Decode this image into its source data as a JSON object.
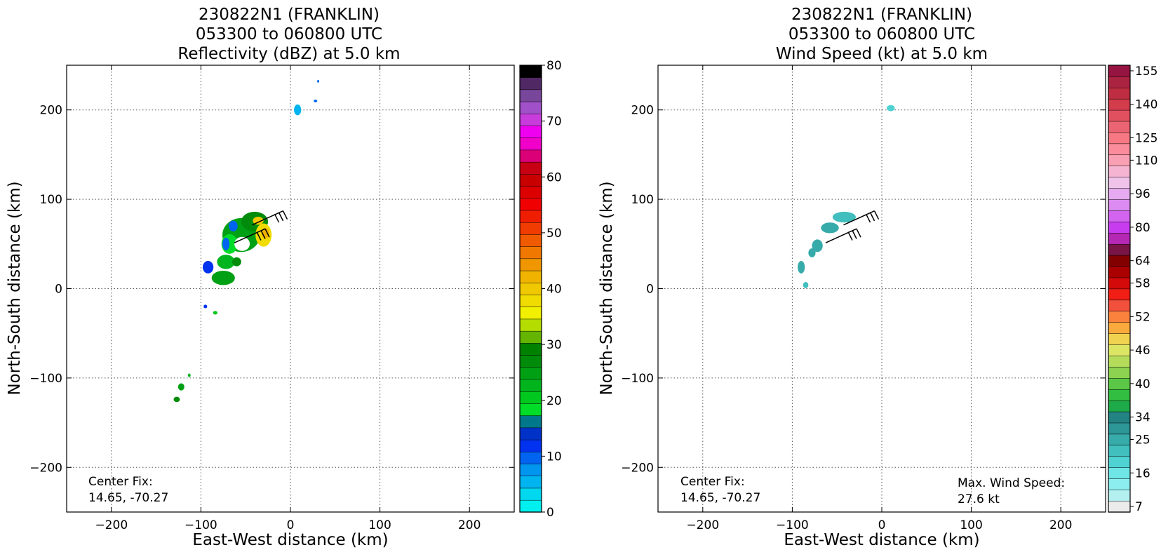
{
  "chart_data": [
    {
      "type": "heatmap",
      "panel": "reflectivity",
      "title": [
        "230822N1 (FRANKLIN)",
        "053300 to 060800 UTC",
        "Reflectivity (dBZ) at 5.0 km"
      ],
      "xlabel": "East-West distance (km)",
      "ylabel": "North-South distance (km)",
      "xlim": [
        -250,
        250
      ],
      "ylim": [
        -250,
        250
      ],
      "xticks": [
        -200,
        -100,
        0,
        100,
        200
      ],
      "yticks": [
        -200,
        -100,
        0,
        100,
        200
      ],
      "grid": true,
      "annotation": [
        "Center Fix:",
        "14.65, -70.27"
      ],
      "colorbar": {
        "min": 0,
        "max": 80,
        "tick_labels": [
          "0",
          "10",
          "20",
          "30",
          "40",
          "50",
          "60",
          "70",
          "80"
        ],
        "tick_values": [
          0,
          10,
          20,
          30,
          40,
          50,
          60,
          70,
          80
        ],
        "colors": [
          "#00f0f0",
          "#00d8f0",
          "#00b4f0",
          "#0096f0",
          "#0064f0",
          "#0032f0",
          "#0032c8",
          "#00788c",
          "#00dc28",
          "#00c81e",
          "#00b41e",
          "#00a014",
          "#008c0a",
          "#008200",
          "#64b400",
          "#b4dc00",
          "#f0f000",
          "#f0dc00",
          "#f0c800",
          "#f0b400",
          "#f09600",
          "#f07800",
          "#f05a00",
          "#f03c00",
          "#f01e00",
          "#f00000",
          "#dc0000",
          "#c80000",
          "#c80014",
          "#dc0078",
          "#f000c8",
          "#f000f0",
          "#c83cdc",
          "#a050c8",
          "#78469b",
          "#502864",
          "#000000"
        ]
      },
      "echo_cells": [
        {
          "x": -55,
          "y": 60,
          "w": 42,
          "h": 38,
          "dbz": 24
        },
        {
          "x": -40,
          "y": 75,
          "w": 30,
          "h": 22,
          "dbz": 27
        },
        {
          "x": -30,
          "y": 60,
          "w": 18,
          "h": 26,
          "dbz": 38
        },
        {
          "x": -28,
          "y": 62,
          "w": 9,
          "h": 12,
          "dbz": 42
        },
        {
          "x": -36,
          "y": 76,
          "w": 12,
          "h": 9,
          "dbz": 40
        },
        {
          "x": -68,
          "y": 50,
          "w": 18,
          "h": 22,
          "dbz": 19
        },
        {
          "x": -72,
          "y": 30,
          "w": 20,
          "h": 16,
          "dbz": 22
        },
        {
          "x": -75,
          "y": 12,
          "w": 26,
          "h": 16,
          "dbz": 24
        },
        {
          "x": -60,
          "y": 30,
          "w": 10,
          "h": 10,
          "dbz": 26
        },
        {
          "x": -64,
          "y": 70,
          "w": 10,
          "h": 12,
          "dbz": 10
        },
        {
          "x": -72,
          "y": 50,
          "w": 8,
          "h": 14,
          "dbz": 10
        },
        {
          "x": -92,
          "y": 24,
          "w": 12,
          "h": 14,
          "dbz": 12
        },
        {
          "x": -95,
          "y": -20,
          "w": 4,
          "h": 4,
          "dbz": 11
        },
        {
          "x": -84,
          "y": -27,
          "w": 5,
          "h": 4,
          "dbz": 20
        },
        {
          "x": -122,
          "y": -110,
          "w": 7,
          "h": 8,
          "dbz": 24
        },
        {
          "x": -113,
          "y": -97,
          "w": 3,
          "h": 4,
          "dbz": 22
        },
        {
          "x": -127,
          "y": -124,
          "w": 7,
          "h": 6,
          "dbz": 28
        },
        {
          "x": 8,
          "y": 200,
          "w": 8,
          "h": 12,
          "dbz": 6
        },
        {
          "x": 28,
          "y": 210,
          "w": 4,
          "h": 3,
          "dbz": 9
        },
        {
          "x": 31,
          "y": 232,
          "w": 2,
          "h": 3,
          "dbz": 9
        }
      ],
      "wind_barbs": [
        {
          "x": -38,
          "y": 76,
          "speed_kt": 27
        },
        {
          "x": -58,
          "y": 56,
          "speed_kt": 25
        }
      ]
    },
    {
      "type": "heatmap",
      "panel": "wind_speed",
      "title": [
        "230822N1 (FRANKLIN)",
        "053300 to 060800 UTC",
        "Wind Speed (kt) at 5.0 km"
      ],
      "xlabel": "East-West distance (km)",
      "ylabel": "North-South distance (km)",
      "xlim": [
        -250,
        250
      ],
      "ylim": [
        -250,
        250
      ],
      "xticks": [
        -200,
        -100,
        0,
        100,
        200
      ],
      "yticks": [
        -200,
        -100,
        0,
        100,
        200
      ],
      "grid": true,
      "annotation": [
        "Center Fix:",
        "14.65, -70.27"
      ],
      "max_wind_annotation": [
        "Max. Wind Speed:",
        "27.6 kt"
      ],
      "max_wind_speed_kt": 27.6,
      "colorbar": {
        "min": 7,
        "max": 160,
        "tick_labels": [
          "7",
          "16",
          "25",
          "34",
          "40",
          "46",
          "52",
          "58",
          "64",
          "80",
          "96",
          "110",
          "125",
          "140",
          "155"
        ],
        "colors": [
          "#ebebeb",
          "#b4f0f0",
          "#8ceeee",
          "#6ee6e6",
          "#50d2d2",
          "#41bebe",
          "#37aaaa",
          "#2d9696",
          "#238282",
          "#1eaa46",
          "#32be41",
          "#5ac846",
          "#8cd250",
          "#b4dc5a",
          "#dce664",
          "#f0d250",
          "#faaa3c",
          "#fa823c",
          "#f0503c",
          "#f01e14",
          "#d20a0a",
          "#aa0000",
          "#820000",
          "#781446",
          "#b428b4",
          "#c83cf0",
          "#d264f0",
          "#dc8cf0",
          "#e6aaf0",
          "#f0c3ea",
          "#f5b4d2",
          "#faa0b4",
          "#fa8c9b",
          "#f57882",
          "#eb6473",
          "#e1505f",
          "#d23c4b",
          "#be2d41",
          "#aa2341",
          "#961441"
        ]
      },
      "echo_cells": [
        {
          "x": 10,
          "y": 202,
          "w": 9,
          "h": 7,
          "kt": 17
        },
        {
          "x": -42,
          "y": 80,
          "w": 26,
          "h": 12,
          "kt": 22
        },
        {
          "x": -58,
          "y": 68,
          "w": 20,
          "h": 12,
          "kt": 24
        },
        {
          "x": -72,
          "y": 48,
          "w": 12,
          "h": 14,
          "kt": 24
        },
        {
          "x": -78,
          "y": 40,
          "w": 8,
          "h": 10,
          "kt": 25
        },
        {
          "x": -90,
          "y": 24,
          "w": 8,
          "h": 14,
          "kt": 24
        },
        {
          "x": -85,
          "y": 4,
          "w": 6,
          "h": 7,
          "kt": 20
        }
      ],
      "wind_barbs": [
        {
          "x": -38,
          "y": 76,
          "speed_kt": 27
        },
        {
          "x": -58,
          "y": 56,
          "speed_kt": 25
        }
      ]
    }
  ]
}
